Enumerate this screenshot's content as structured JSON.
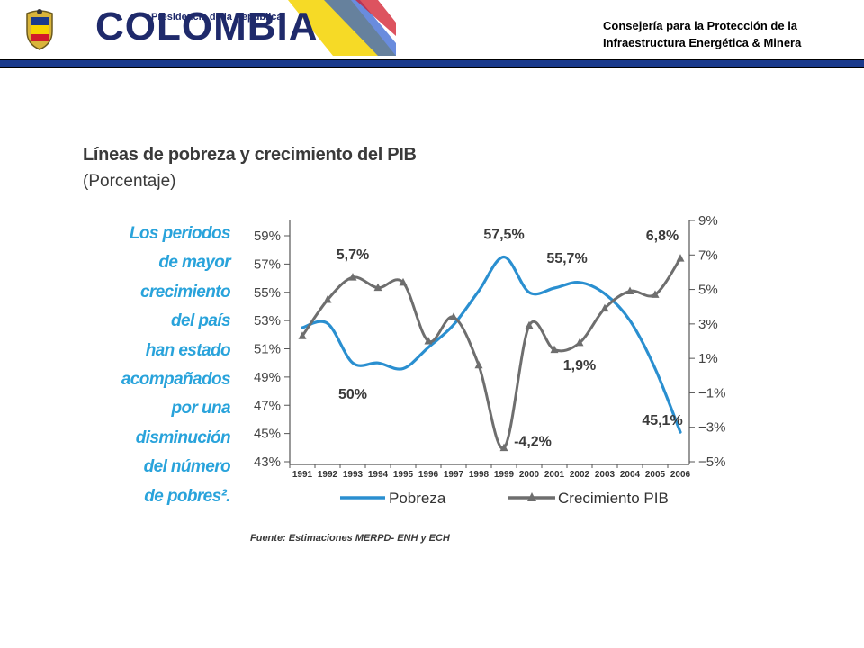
{
  "header": {
    "logo_small": "Presidencia de la República",
    "logo_text": "COLOMBIA",
    "department_line1": "Consejería para la Protección de la",
    "department_line2": "Infraestructura Energética & Minera",
    "colors": {
      "bar": "#1a3a8c",
      "flag_yellow": "#f5d300",
      "flag_blue": "#1a3a8c",
      "flag_red": "#d11a2a"
    }
  },
  "side_note": {
    "lines": [
      "Los periodos",
      "de mayor",
      "crecimiento",
      "del país",
      "han estado",
      "acompañados",
      "por una",
      "disminución",
      "del número",
      "de pobres²."
    ],
    "color": "#29a3db"
  },
  "source": "Fuente: Estimaciones MERPD- ENH y ECH",
  "chart_data": {
    "type": "line",
    "title": "Líneas de pobreza y crecimiento del PIB",
    "subtitle": "(Porcentaje)",
    "categories": [
      "1991",
      "1992",
      "1993",
      "1994",
      "1995",
      "1996",
      "1997",
      "1998",
      "1999",
      "2000",
      "2001",
      "2002",
      "2003",
      "2004",
      "2005",
      "2006"
    ],
    "left_axis": {
      "ticks": [
        "59%",
        "57%",
        "55%",
        "53%",
        "51%",
        "49%",
        "47%",
        "45%",
        "43%"
      ],
      "range": [
        43,
        59
      ]
    },
    "right_axis": {
      "ticks": [
        "9%",
        "7%",
        "5%",
        "3%",
        "1%",
        "-1%",
        "-3%",
        "-5%"
      ],
      "range": [
        -5,
        9
      ]
    },
    "series": [
      {
        "name": "Pobreza",
        "axis": "left",
        "color": "#2a8fd0",
        "x": [
          1991,
          1992,
          1993,
          1994,
          1995,
          1996,
          1997,
          1998,
          1999,
          2000,
          2001,
          2002,
          2003,
          2004,
          2005,
          2006
        ],
        "values": [
          52.5,
          52.8,
          50.0,
          50.0,
          49.6,
          51.1,
          52.7,
          55.1,
          57.5,
          55.0,
          55.3,
          55.7,
          54.9,
          53.0,
          49.6,
          45.1
        ],
        "labels": [
          {
            "x": 1993,
            "text": "50%"
          },
          {
            "x": 1999,
            "text": "57,5%"
          },
          {
            "x": 2002,
            "text": "55,7%"
          },
          {
            "x": 2006,
            "text": "45,1%"
          }
        ]
      },
      {
        "name": "Crecimiento PIB",
        "axis": "right",
        "color": "#6e6e6e",
        "x": [
          1991,
          1992,
          1993,
          1994,
          1995,
          1996,
          1997,
          1998,
          1999,
          2000,
          2001,
          2002,
          2003,
          2004,
          2005,
          2006
        ],
        "values": [
          2.3,
          4.4,
          5.7,
          5.1,
          5.4,
          2.0,
          3.4,
          0.6,
          -4.2,
          2.9,
          1.5,
          1.9,
          3.9,
          4.9,
          4.7,
          6.8
        ],
        "labels": [
          {
            "x": 1993,
            "text": "5,7%"
          },
          {
            "x": 1999,
            "text": "-4,2%"
          },
          {
            "x": 2002,
            "text": "1,9%"
          },
          {
            "x": 2006,
            "text": "6,8%"
          }
        ]
      }
    ],
    "grid": false,
    "legend": "bottom"
  }
}
